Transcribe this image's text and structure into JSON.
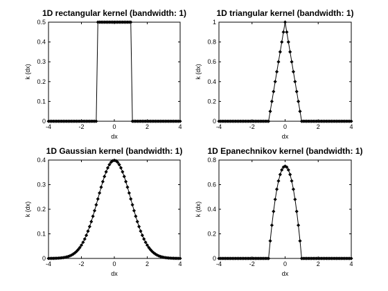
{
  "chart_data": [
    {
      "type": "line",
      "title": "1D rectangular kernel (bandwidth: 1)",
      "xlabel": "dx",
      "ylabel": "k (dx)",
      "xlim": [
        -4,
        4
      ],
      "ylim": [
        0,
        0.5
      ],
      "xticks": [
        -4,
        -2,
        0,
        2,
        4
      ],
      "yticks": [
        0,
        0.1,
        0.2,
        0.3,
        0.4,
        0.5
      ],
      "ytick_labels": [
        "0",
        "0.1",
        "0.2",
        "0.3",
        "0.4",
        "0.5"
      ],
      "kernel": "rectangular",
      "bandwidth": 1,
      "marker": "diamond",
      "grid": false
    },
    {
      "type": "line",
      "title": "1D triangular kernel (bandwidth: 1)",
      "xlabel": "dx",
      "ylabel": "k (dx)",
      "xlim": [
        -4,
        4
      ],
      "ylim": [
        0,
        1
      ],
      "xticks": [
        -4,
        -2,
        0,
        2,
        4
      ],
      "yticks": [
        0,
        0.2,
        0.4,
        0.6,
        0.8,
        1
      ],
      "ytick_labels": [
        "0",
        "0.2",
        "0.4",
        "0.6",
        "0.8",
        "1"
      ],
      "kernel": "triangular",
      "bandwidth": 1,
      "marker": "diamond",
      "grid": false
    },
    {
      "type": "line",
      "title": "1D Gaussian kernel (bandwidth: 1)",
      "xlabel": "dx",
      "ylabel": "k (dx)",
      "xlim": [
        -4,
        4
      ],
      "ylim": [
        0,
        0.4
      ],
      "xticks": [
        -4,
        -2,
        0,
        2,
        4
      ],
      "yticks": [
        0,
        0.1,
        0.2,
        0.3,
        0.4
      ],
      "ytick_labels": [
        "0",
        "0.1",
        "0.2",
        "0.3",
        "0.4"
      ],
      "kernel": "gaussian",
      "bandwidth": 1,
      "marker": "diamond",
      "grid": false
    },
    {
      "type": "line",
      "title": "1D Epanechnikov kernel (bandwidth: 1)",
      "xlabel": "dx",
      "ylabel": "k (dx)",
      "xlim": [
        -4,
        4
      ],
      "ylim": [
        0,
        0.8
      ],
      "xticks": [
        -4,
        -2,
        0,
        2,
        4
      ],
      "yticks": [
        0,
        0.2,
        0.4,
        0.6,
        0.8
      ],
      "ytick_labels": [
        "0",
        "0.2",
        "0.4",
        "0.6",
        "0.8"
      ],
      "kernel": "epanechnikov",
      "bandwidth": 1,
      "marker": "diamond",
      "grid": false
    }
  ]
}
